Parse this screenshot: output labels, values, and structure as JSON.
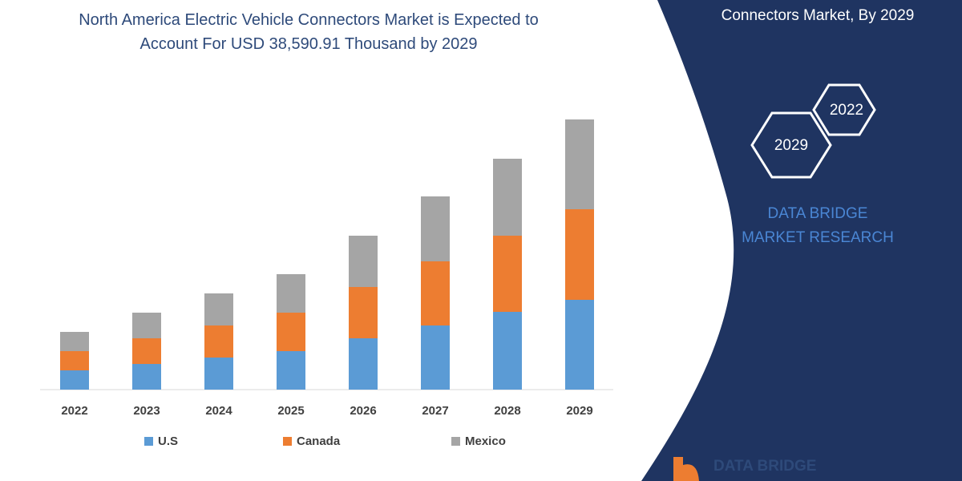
{
  "chart_data": {
    "type": "bar",
    "stacked": true,
    "title": "North America Electric Vehicle Connectors Market is Expected to Account For USD 38,590.91 Thousand by 2029",
    "categories": [
      "2022",
      "2023",
      "2024",
      "2025",
      "2026",
      "2027",
      "2028",
      "2029"
    ],
    "series": [
      {
        "name": "U.S",
        "color": "#5b9bd5",
        "values": [
          24,
          32,
          40,
          48,
          64,
          80,
          97,
          112
        ]
      },
      {
        "name": "Canada",
        "color": "#ed7d31",
        "values": [
          24,
          32,
          40,
          48,
          64,
          80,
          95,
          113
        ]
      },
      {
        "name": "Mexico",
        "color": "#a5a5a5",
        "values": [
          24,
          32,
          40,
          48,
          64,
          81,
          96,
          112
        ]
      }
    ],
    "legend": "bottom"
  },
  "panel": {
    "heading": "Connectors Market, By 2029",
    "hex_labels": [
      "2022",
      "2029"
    ],
    "brand": "DATA BRIDGE MARKET RESEARCH"
  },
  "logo": "DATA BRIDGE"
}
